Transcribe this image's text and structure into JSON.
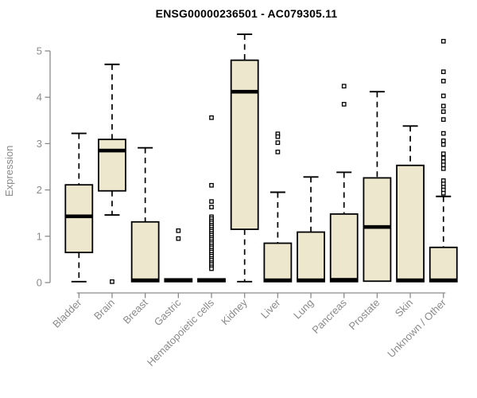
{
  "chart_data": {
    "type": "boxplot",
    "title": "ENSG00000236501 - AC079305.11",
    "ylabel": "Expression",
    "xlabel": "",
    "ylim": [
      0,
      5
    ],
    "yticks": [
      0,
      1,
      2,
      3,
      4,
      5
    ],
    "grid": false,
    "legend": "none",
    "colors": {
      "box_fill": "#ede8cd",
      "box_border": "#000000",
      "median": "#000000",
      "whisker": "#000000",
      "outlier_stroke": "#000000",
      "axis": "#8a8a8a",
      "tick_label": "#8a8a8a",
      "title": "#000000",
      "background": "#ffffff"
    },
    "categories": [
      "Bladder",
      "Brain",
      "Breast",
      "Gastric",
      "Hematopoietic cells",
      "Kidney",
      "Liver",
      "Lung",
      "Pancreas",
      "Prostate",
      "Skin",
      "Unknown / Other"
    ],
    "boxes": [
      {
        "category": "Bladder",
        "whisker_low": 0.02,
        "q1": 0.65,
        "median": 1.43,
        "q3": 2.11,
        "whisker_high": 3.22,
        "outliers": []
      },
      {
        "category": "Brain",
        "whisker_low": 1.46,
        "q1": 1.98,
        "median": 2.85,
        "q3": 3.09,
        "whisker_high": 4.71,
        "outliers": [
          0.02
        ]
      },
      {
        "category": "Breast",
        "whisker_low": 0.02,
        "q1": 0.02,
        "median": 0.05,
        "q3": 1.31,
        "whisker_high": 2.91,
        "outliers": []
      },
      {
        "category": "Gastric",
        "whisker_low": 0.02,
        "q1": 0.02,
        "median": 0.05,
        "q3": 0.08,
        "whisker_high": 0.1,
        "outliers": [
          1.12,
          0.95
        ]
      },
      {
        "category": "Hematopoietic cells",
        "whisker_low": 0.02,
        "q1": 0.02,
        "median": 0.05,
        "q3": 0.08,
        "whisker_high": 0.1,
        "outliers": [
          3.56,
          2.1,
          1.75,
          1.63,
          1.42,
          1.38,
          1.33,
          1.29,
          1.24,
          1.2,
          1.15,
          1.11,
          1.06,
          1.02,
          0.97,
          0.93,
          0.88,
          0.84,
          0.79,
          0.75,
          0.7,
          0.66,
          0.61,
          0.57,
          0.52,
          0.48,
          0.43,
          0.39,
          0.34,
          0.3
        ]
      },
      {
        "category": "Kidney",
        "whisker_low": 0.02,
        "q1": 1.15,
        "median": 4.12,
        "q3": 4.8,
        "whisker_high": 5.36,
        "outliers": []
      },
      {
        "category": "Liver",
        "whisker_low": 0.02,
        "q1": 0.02,
        "median": 0.05,
        "q3": 0.85,
        "whisker_high": 1.95,
        "outliers": [
          3.21,
          3.15,
          3.02,
          2.82
        ]
      },
      {
        "category": "Lung",
        "whisker_low": 0.02,
        "q1": 0.02,
        "median": 0.05,
        "q3": 1.09,
        "whisker_high": 2.28,
        "outliers": []
      },
      {
        "category": "Pancreas",
        "whisker_low": 0.02,
        "q1": 0.02,
        "median": 0.06,
        "q3": 1.48,
        "whisker_high": 2.38,
        "outliers": [
          4.24,
          3.85
        ]
      },
      {
        "category": "Prostate",
        "whisker_low": 0.02,
        "q1": 0.03,
        "median": 1.2,
        "q3": 2.26,
        "whisker_high": 4.12,
        "outliers": []
      },
      {
        "category": "Skin",
        "whisker_low": 0.02,
        "q1": 0.02,
        "median": 0.05,
        "q3": 2.53,
        "whisker_high": 3.38,
        "outliers": []
      },
      {
        "category": "Unknown / Other",
        "whisker_low": 0.02,
        "q1": 0.02,
        "median": 0.05,
        "q3": 0.76,
        "whisker_high": 1.86,
        "outliers": [
          5.21,
          4.55,
          4.35,
          4.03,
          3.81,
          3.69,
          3.52,
          3.22,
          3.06,
          2.98,
          2.78,
          2.69,
          2.61,
          2.54,
          2.46,
          2.2,
          2.13,
          2.06,
          2.0,
          1.93
        ]
      }
    ]
  }
}
